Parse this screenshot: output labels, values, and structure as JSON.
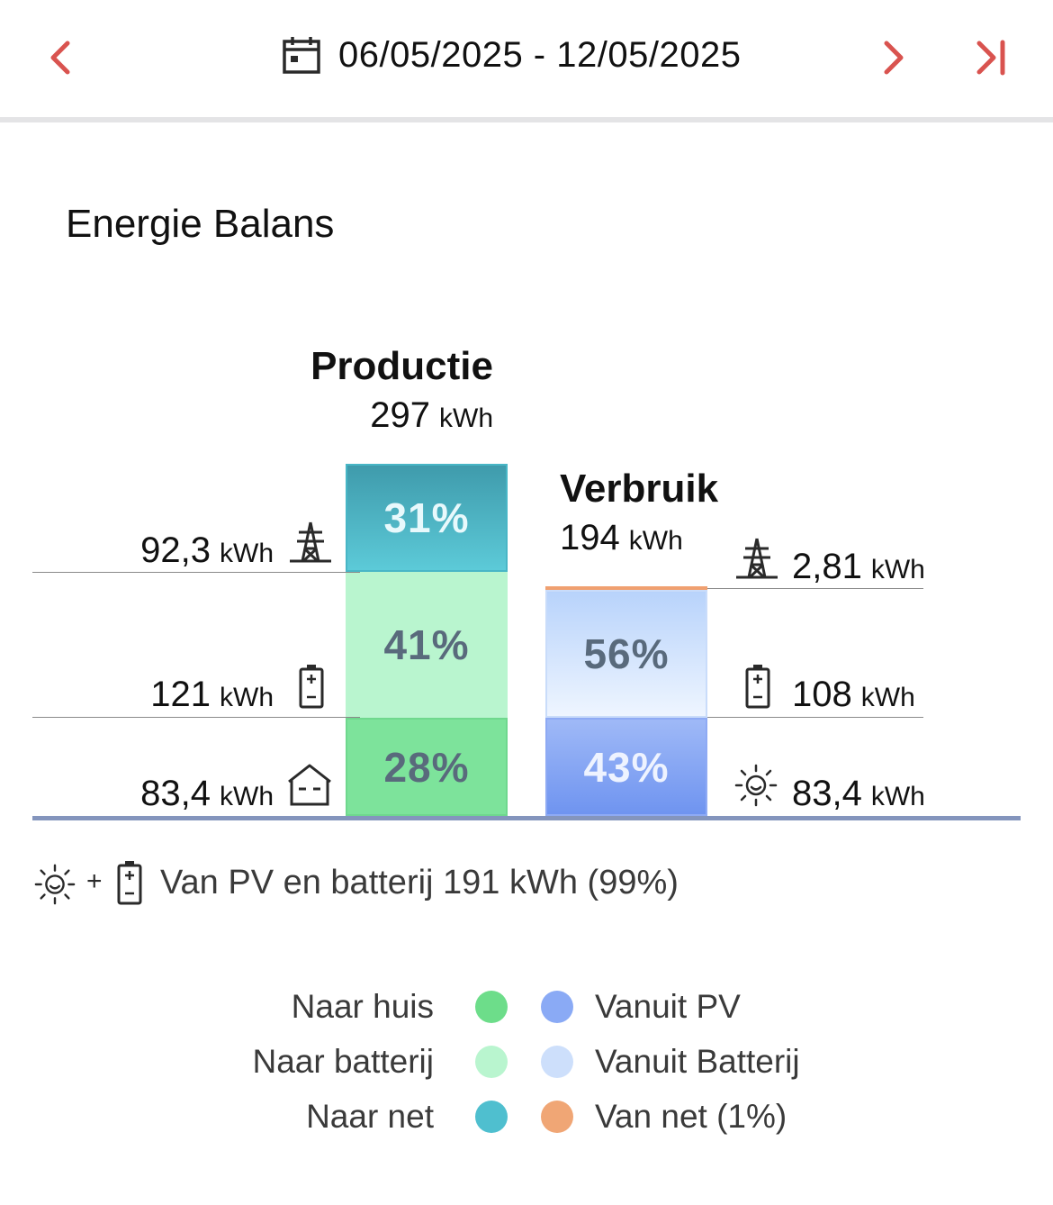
{
  "header": {
    "date_range": "06/05/2025 - 12/05/2025",
    "icons": [
      "chevron-left-icon",
      "calendar-icon",
      "chevron-right-icon",
      "skip-to-end-icon"
    ],
    "accent_color": "#d9534f"
  },
  "card": {
    "title": "Energie Balans"
  },
  "production": {
    "title": "Productie",
    "total_value": "297",
    "total_unit": "kWh",
    "segments": [
      {
        "key": "grid",
        "percent_label": "31%",
        "value": 0.31,
        "color": "#4fbfcf"
      },
      {
        "key": "battery",
        "percent_label": "41%",
        "value": 0.41,
        "color": "#b8f5cf"
      },
      {
        "key": "house",
        "percent_label": "28%",
        "value": 0.28,
        "color": "#7ee29b"
      }
    ],
    "rows": [
      {
        "value": "92,3",
        "unit": "kWh",
        "icon": "power-pylon-icon"
      },
      {
        "value": "121",
        "unit": "kWh",
        "icon": "battery-icon"
      },
      {
        "value": "83,4",
        "unit": "kWh",
        "icon": "house-icon"
      }
    ]
  },
  "consumption": {
    "title": "Verbruik",
    "total_value": "194",
    "total_unit": "kWh",
    "segments": [
      {
        "key": "grid",
        "percent_label": "",
        "value": 0.01,
        "color": "#f0a070"
      },
      {
        "key": "battery",
        "percent_label": "56%",
        "value": 0.56,
        "color": "#cfe0fb"
      },
      {
        "key": "pv",
        "percent_label": "43%",
        "value": 0.43,
        "color": "#7fa2f3"
      }
    ],
    "rows": [
      {
        "value": "2,81",
        "unit": "kWh",
        "icon": "power-pylon-icon"
      },
      {
        "value": "108",
        "unit": "kWh",
        "icon": "battery-icon"
      },
      {
        "value": "83,4",
        "unit": "kWh",
        "icon": "sun-icon"
      }
    ]
  },
  "footer": {
    "plus": "+",
    "text": "Van PV en batterij 191 kWh (99%)",
    "icons": [
      "sun-icon",
      "battery-icon"
    ]
  },
  "legend": {
    "left": [
      {
        "label": "Naar huis",
        "color": "#6ddd8a"
      },
      {
        "label": "Naar batterij",
        "color": "#b9f5cf"
      },
      {
        "label": "Naar net",
        "color": "#4fbfcf"
      }
    ],
    "right": [
      {
        "label": "Vanuit PV",
        "color": "#8aaaf5"
      },
      {
        "label": "Vanuit Batterij",
        "color": "#cddffb"
      },
      {
        "label": "Van net (1%)",
        "color": "#f0a675"
      }
    ]
  }
}
